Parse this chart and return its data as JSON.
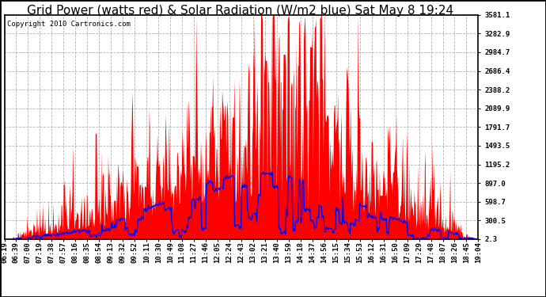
{
  "title": "Grid Power (watts red) & Solar Radiation (W/m2 blue) Sat May 8 19:24",
  "copyright": "Copyright 2010 Cartronics.com",
  "yticks": [
    2.3,
    300.5,
    598.7,
    897.0,
    1195.2,
    1493.5,
    1791.7,
    2089.9,
    2388.2,
    2686.4,
    2984.7,
    3282.9,
    3581.1
  ],
  "ymin": 2.3,
  "ymax": 3581.1,
  "bg_color": "#ffffff",
  "plot_bg_color": "#ffffff",
  "grid_color": "#aaaaaa",
  "red_color": "#ff0000",
  "blue_color": "#0000ff",
  "xtick_labels": [
    "06:19",
    "06:39",
    "07:00",
    "07:19",
    "07:38",
    "07:57",
    "08:16",
    "08:35",
    "08:54",
    "09:13",
    "09:32",
    "09:52",
    "10:11",
    "10:30",
    "10:49",
    "11:08",
    "11:27",
    "11:46",
    "12:05",
    "12:24",
    "12:43",
    "13:02",
    "13:21",
    "13:40",
    "13:59",
    "14:18",
    "14:37",
    "14:56",
    "15:15",
    "15:34",
    "15:53",
    "16:12",
    "16:31",
    "16:50",
    "17:09",
    "17:29",
    "17:48",
    "18:07",
    "18:26",
    "18:45",
    "19:04"
  ],
  "title_fontsize": 11,
  "tick_fontsize": 6.5,
  "copyright_fontsize": 6.5
}
